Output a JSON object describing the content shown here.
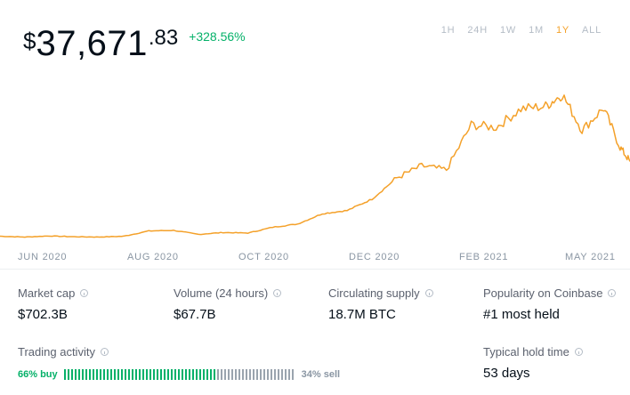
{
  "price": {
    "currency": "$",
    "main": "37,671",
    "cents": ".83",
    "change": "+328.56%"
  },
  "range_tabs": [
    {
      "label": "1H",
      "active": false
    },
    {
      "label": "24H",
      "active": false
    },
    {
      "label": "1W",
      "active": false
    },
    {
      "label": "1M",
      "active": false
    },
    {
      "label": "1Y",
      "active": true
    },
    {
      "label": "ALL",
      "active": false
    }
  ],
  "chart_data": {
    "type": "line",
    "x_ticks": [
      "JUN 2020",
      "AUG 2020",
      "OCT 2020",
      "DEC 2020",
      "FEB 2021",
      "MAY 2021"
    ],
    "series_color": "#f4a12a",
    "x": [
      "2020-05-08",
      "2020-05-23",
      "2020-06-07",
      "2020-06-22",
      "2020-07-07",
      "2020-07-22",
      "2020-08-06",
      "2020-08-21",
      "2020-09-05",
      "2020-09-20",
      "2020-10-05",
      "2020-10-20",
      "2020-11-04",
      "2020-11-19",
      "2020-12-04",
      "2020-12-19",
      "2021-01-03",
      "2021-01-18",
      "2021-02-02",
      "2021-02-17",
      "2021-03-04",
      "2021-03-19",
      "2021-04-03",
      "2021-04-13",
      "2021-04-25",
      "2021-05-08",
      "2021-05-18",
      "2021-05-24"
    ],
    "values": [
      9500,
      9200,
      9600,
      9300,
      9200,
      9500,
      11500,
      11700,
      10200,
      10900,
      10700,
      12900,
      14100,
      18000,
      19200,
      23500,
      31500,
      36000,
      34500,
      51500,
      50500,
      57500,
      58500,
      63000,
      49500,
      57800,
      43000,
      37671
    ]
  },
  "stats": {
    "market_cap": {
      "label": "Market cap",
      "value": "$702.3B"
    },
    "volume": {
      "label": "Volume (24 hours)",
      "value": "$67.7B"
    },
    "circulating": {
      "label": "Circulating supply",
      "value": "18.7M BTC"
    },
    "popularity": {
      "label": "Popularity on Coinbase",
      "value": "#1 most held"
    },
    "trading": {
      "label": "Trading activity",
      "buy_text": "66% buy",
      "sell_text": "34% sell",
      "buy_fraction": 0.66
    },
    "hold_time": {
      "label": "Typical hold time",
      "value": "53 days"
    }
  },
  "colors": {
    "accent": "#f4a12a",
    "positive": "#05b169",
    "muted": "#8a96a3"
  }
}
